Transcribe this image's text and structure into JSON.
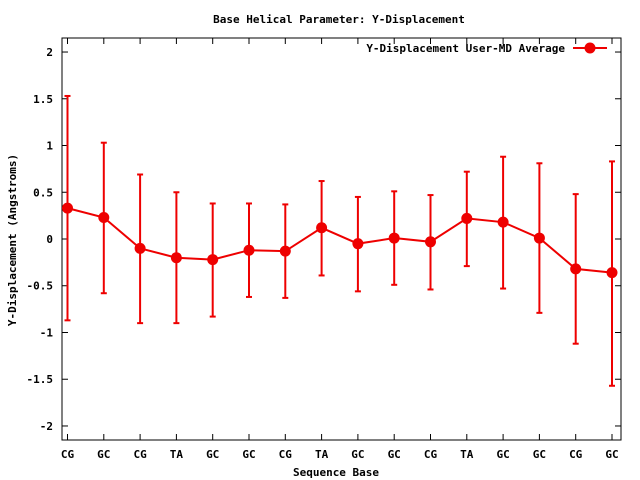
{
  "chart_data": {
    "type": "line",
    "title": "Base  Helical Parameter: Y-Displacement",
    "xlabel": "Sequence Base",
    "ylabel": "Y-Displacement (Angstroms)",
    "categories": [
      "CG",
      "GC",
      "CG",
      "TA",
      "GC",
      "GC",
      "CG",
      "TA",
      "GC",
      "GC",
      "CG",
      "TA",
      "GC",
      "GC",
      "CG",
      "GC"
    ],
    "ylim": [
      -2.15,
      2.15
    ],
    "yticks": [
      2,
      1.5,
      1,
      0.5,
      0,
      -0.5,
      -1,
      -1.5,
      -2
    ],
    "legend_position": "top-right",
    "series": [
      {
        "name": "Y-Displacement User-MD Average",
        "color": "#ee0000",
        "values": [
          0.33,
          0.23,
          -0.1,
          -0.2,
          -0.22,
          -0.12,
          -0.13,
          0.12,
          -0.05,
          0.01,
          -0.03,
          0.22,
          0.18,
          0.01,
          -0.32,
          -0.36
        ],
        "err_low": [
          -0.87,
          -0.58,
          -0.9,
          -0.9,
          -0.83,
          -0.62,
          -0.63,
          -0.39,
          -0.56,
          -0.49,
          -0.54,
          -0.29,
          -0.53,
          -0.79,
          -1.12,
          -1.57
        ],
        "err_high": [
          1.53,
          1.03,
          0.69,
          0.5,
          0.38,
          0.38,
          0.37,
          0.62,
          0.45,
          0.51,
          0.47,
          0.72,
          0.88,
          0.81,
          0.48,
          0.83
        ]
      }
    ]
  }
}
